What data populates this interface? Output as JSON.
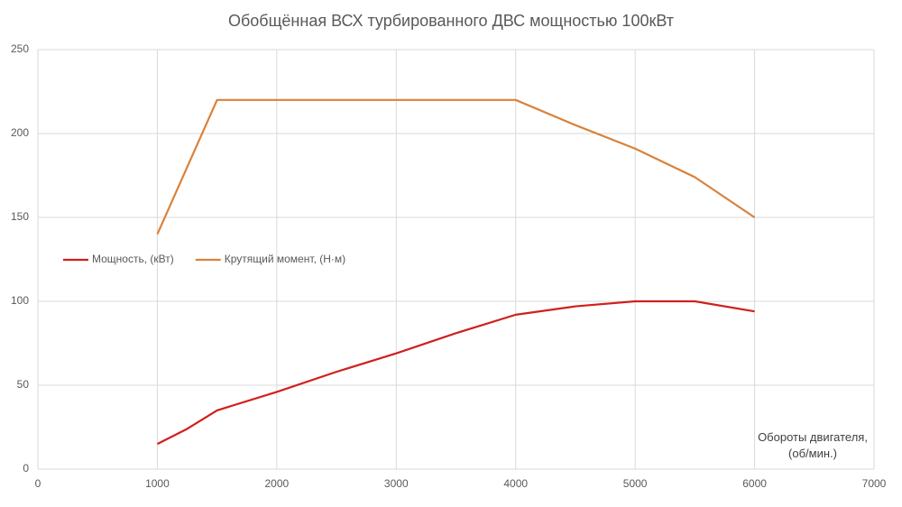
{
  "chart_data": {
    "type": "line",
    "title": "Обобщённая ВСХ турбированного ДВС мощностью 100кВт",
    "x_label": "Обороты двигателя, (об/мин.)",
    "x": [
      1000,
      1250,
      1500,
      2000,
      2500,
      3000,
      3500,
      4000,
      4500,
      5000,
      5500,
      6000
    ],
    "series": [
      {
        "name": "Мощность, (кВт)",
        "color": "#d0201c",
        "values": [
          15,
          24,
          35,
          46,
          58,
          69,
          81,
          92,
          97,
          100,
          100,
          94
        ]
      },
      {
        "name": "Крутящий момент, (Н·м)",
        "color": "#d9823b",
        "values": [
          140,
          180,
          220,
          220,
          220,
          220,
          220,
          220,
          205,
          191,
          174,
          150
        ]
      }
    ],
    "xlim": [
      0,
      7000
    ],
    "xticks": [
      0,
      1000,
      2000,
      3000,
      4000,
      5000,
      6000,
      7000
    ],
    "ylim": [
      0,
      250
    ],
    "yticks": [
      0,
      50,
      100,
      150,
      200,
      250
    ],
    "grid": true,
    "legend": "left"
  }
}
